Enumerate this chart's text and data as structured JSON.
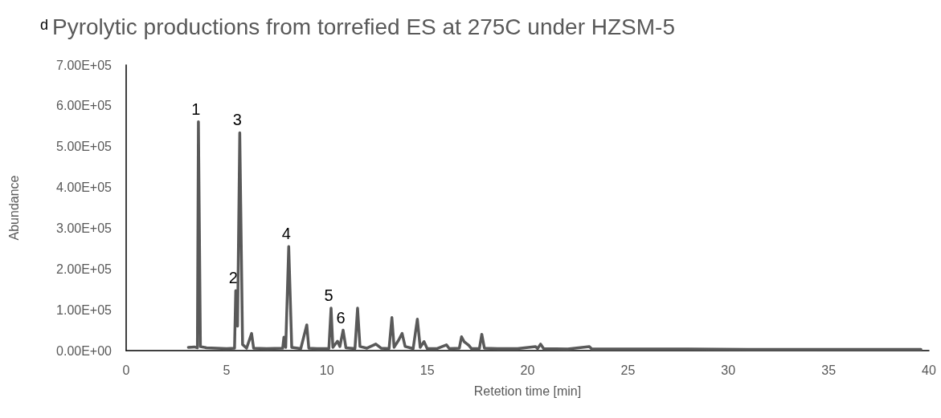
{
  "chart_data": {
    "type": "line",
    "title": "Pyrolytic productions from torrefied ES at 275C under HZSM-5",
    "xlabel": "Retetion time [min]",
    "ylabel": "Abundance",
    "annotations": [
      "d",
      {
        "text": "1",
        "x": 3.6,
        "y": 561000
      },
      {
        "text": "2",
        "x": 5.46,
        "y": 147000
      },
      {
        "text": "3",
        "x": 5.66,
        "y": 534000
      },
      {
        "text": "4",
        "x": 8.1,
        "y": 255000
      },
      {
        "text": "5",
        "x": 10.21,
        "y": 104000
      },
      {
        "text": "6",
        "x": 10.81,
        "y": 50000
      }
    ],
    "series": [
      {
        "color": "#595959",
        "x": [
          3.1,
          3.4,
          3.55,
          3.6,
          3.7,
          4.0,
          4.5,
          5.0,
          5.4,
          5.46,
          5.55,
          5.66,
          5.8,
          6.0,
          6.25,
          6.35,
          7.0,
          7.8,
          7.86,
          7.95,
          8.1,
          8.25,
          8.7,
          9.0,
          9.1,
          9.5,
          10.1,
          10.21,
          10.3,
          10.53,
          10.65,
          10.81,
          10.95,
          11.4,
          11.53,
          11.65,
          12.0,
          12.44,
          12.7,
          13.1,
          13.24,
          13.35,
          13.58,
          13.75,
          13.9,
          14.3,
          14.51,
          14.65,
          14.84,
          15.0,
          15.5,
          15.96,
          16.1,
          16.6,
          16.71,
          16.84,
          17.07,
          17.2,
          17.6,
          17.72,
          17.85,
          18.5,
          19.5,
          20.4,
          20.5,
          20.65,
          20.8,
          22,
          23.08,
          23.2,
          25,
          28,
          31,
          35,
          39.6
        ],
        "values": [
          8000,
          9000,
          7000,
          561000,
          10000,
          7000,
          6000,
          5000,
          6000,
          147000,
          60000,
          534000,
          15000,
          6000,
          42000,
          6000,
          5000,
          6000,
          33000,
          8000,
          255000,
          8000,
          5000,
          63000,
          6000,
          5000,
          5000,
          104000,
          8000,
          23000,
          10000,
          50000,
          7000,
          5000,
          104000,
          10000,
          6000,
          16000,
          6000,
          5000,
          81000,
          8000,
          26000,
          42000,
          10000,
          5000,
          77000,
          8000,
          22000,
          5000,
          5000,
          14000,
          5000,
          6000,
          34000,
          22000,
          13000,
          5000,
          5000,
          40000,
          6000,
          5000,
          5000,
          10000,
          5000,
          16000,
          5000,
          4000,
          10000,
          4000,
          4000,
          4000,
          3000,
          3000,
          3000
        ]
      }
    ],
    "xlim": [
      0,
      40
    ],
    "xticks": [
      0,
      5,
      10,
      15,
      20,
      25,
      30,
      35,
      40
    ],
    "ylim": [
      0,
      700000
    ],
    "yticks": [
      {
        "value": 0,
        "label": "0.00E+00"
      },
      {
        "value": 100000,
        "label": "1.00E+05"
      },
      {
        "value": 200000,
        "label": "2.00E+05"
      },
      {
        "value": 300000,
        "label": "3.00E+05"
      },
      {
        "value": 400000,
        "label": "4.00E+05"
      },
      {
        "value": 500000,
        "label": "5.00E+05"
      },
      {
        "value": 600000,
        "label": "6.00E+05"
      },
      {
        "value": 700000,
        "label": "7.00E+05"
      }
    ],
    "grid": false,
    "marker": "none",
    "line_style": "solid"
  }
}
